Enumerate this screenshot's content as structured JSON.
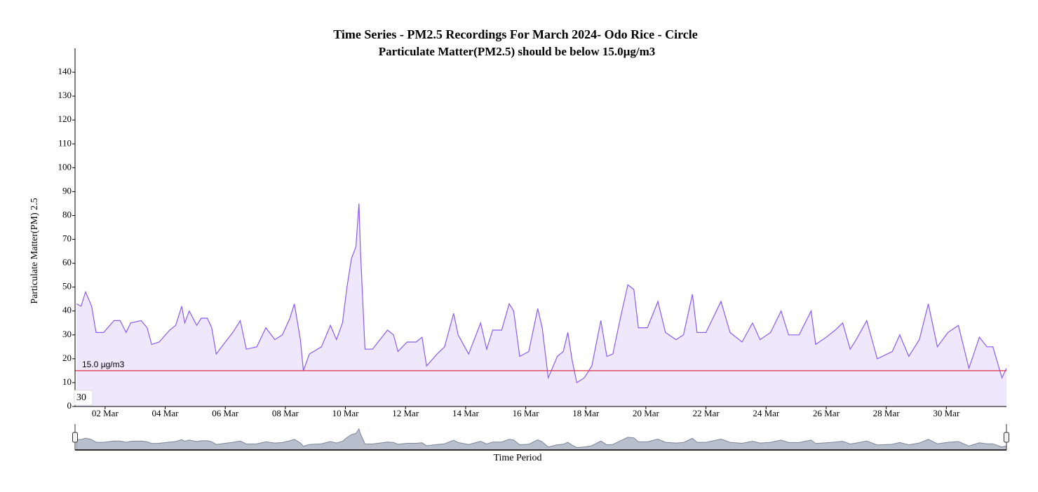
{
  "chart_data": {
    "type": "area",
    "title": "Time Series - PM2.5 Recordings For March 2024- Odo Rice - Circle",
    "subtitle": "Particulate Matter(PM2.5) should be below 15.0µg/m3",
    "y_label": "Particulate Matter(PM) 2.5",
    "x_label": "Time Period",
    "corner_label": "30",
    "line_color": "#8a5cf0",
    "fill_color": "#efe8fd",
    "threshold": {
      "value": 15,
      "label": "15.0 µg/m3",
      "color": "#e0304a"
    },
    "xlim": [
      1,
      32
    ],
    "xticks": [
      {
        "value": 2,
        "label": "02 Mar"
      },
      {
        "value": 4,
        "label": "04 Mar"
      },
      {
        "value": 6,
        "label": "06 Mar"
      },
      {
        "value": 8,
        "label": "08 Mar"
      },
      {
        "value": 10,
        "label": "10 Mar"
      },
      {
        "value": 12,
        "label": "12 Mar"
      },
      {
        "value": 14,
        "label": "14 Mar"
      },
      {
        "value": 16,
        "label": "16 Mar"
      },
      {
        "value": 18,
        "label": "18 Mar"
      },
      {
        "value": 20,
        "label": "20 Mar"
      },
      {
        "value": 22,
        "label": "22 Mar"
      },
      {
        "value": 24,
        "label": "24 Mar"
      },
      {
        "value": 26,
        "label": "26 Mar"
      },
      {
        "value": 28,
        "label": "28 Mar"
      },
      {
        "value": 30,
        "label": "30 Mar"
      }
    ],
    "ylim": [
      0,
      150
    ],
    "yticks": [
      0,
      10,
      20,
      30,
      40,
      50,
      60,
      70,
      80,
      90,
      100,
      110,
      120,
      130,
      140
    ],
    "x": [
      1.05,
      1.2,
      1.35,
      1.55,
      1.7,
      1.95,
      2.3,
      2.5,
      2.7,
      2.85,
      3.2,
      3.4,
      3.55,
      3.8,
      4.15,
      4.35,
      4.55,
      4.65,
      4.8,
      5.05,
      5.2,
      5.4,
      5.55,
      5.7,
      6.0,
      6.25,
      6.5,
      6.7,
      7.05,
      7.35,
      7.65,
      7.9,
      8.15,
      8.3,
      8.5,
      8.6,
      8.8,
      9.2,
      9.5,
      9.7,
      9.9,
      10.05,
      10.2,
      10.35,
      10.45,
      10.5,
      10.65,
      10.9,
      11.15,
      11.4,
      11.6,
      11.75,
      12.05,
      12.35,
      12.55,
      12.7,
      13.05,
      13.3,
      13.6,
      13.75,
      14.1,
      14.5,
      14.7,
      14.9,
      15.2,
      15.45,
      15.6,
      15.8,
      16.1,
      16.4,
      16.55,
      16.75,
      17.05,
      17.25,
      17.4,
      17.55,
      17.7,
      17.95,
      18.2,
      18.5,
      18.7,
      18.9,
      19.15,
      19.4,
      19.6,
      19.75,
      20.05,
      20.4,
      20.65,
      21.0,
      21.25,
      21.55,
      21.7,
      22.0,
      22.5,
      22.8,
      23.2,
      23.55,
      23.8,
      24.15,
      24.5,
      24.75,
      25.1,
      25.5,
      25.65,
      26.0,
      26.3,
      26.55,
      26.8,
      27.0,
      27.35,
      27.7,
      28.2,
      28.45,
      28.75,
      29.1,
      29.4,
      29.7,
      30.05,
      30.4,
      30.75,
      31.1,
      31.35,
      31.55,
      31.85,
      32.0
    ],
    "values": [
      43,
      42,
      48,
      42,
      31,
      31,
      36,
      36,
      31,
      35,
      36,
      33,
      26,
      27,
      32,
      34,
      42,
      35,
      40,
      34,
      37,
      37,
      33,
      22,
      27,
      31,
      36,
      24,
      25,
      33,
      28,
      30,
      37,
      43,
      28,
      15,
      22,
      25,
      34,
      28,
      35,
      50,
      62,
      67,
      85,
      65,
      24,
      24,
      28,
      32,
      30,
      23,
      27,
      27,
      29,
      17,
      22,
      25,
      39,
      30,
      22,
      35,
      24,
      32,
      32,
      43,
      40,
      21,
      23,
      41,
      33,
      12,
      21,
      23,
      31,
      19,
      10,
      12,
      17,
      36,
      21,
      22,
      37,
      51,
      49,
      33,
      33,
      44,
      31,
      28,
      30,
      47,
      31,
      31,
      44,
      31,
      27,
      35,
      28,
      31,
      40,
      30,
      30,
      40,
      26,
      29,
      32,
      35,
      24,
      28,
      36,
      20,
      23,
      30,
      21,
      28,
      43,
      25,
      31,
      34,
      16,
      29,
      25,
      25,
      12,
      16
    ]
  }
}
